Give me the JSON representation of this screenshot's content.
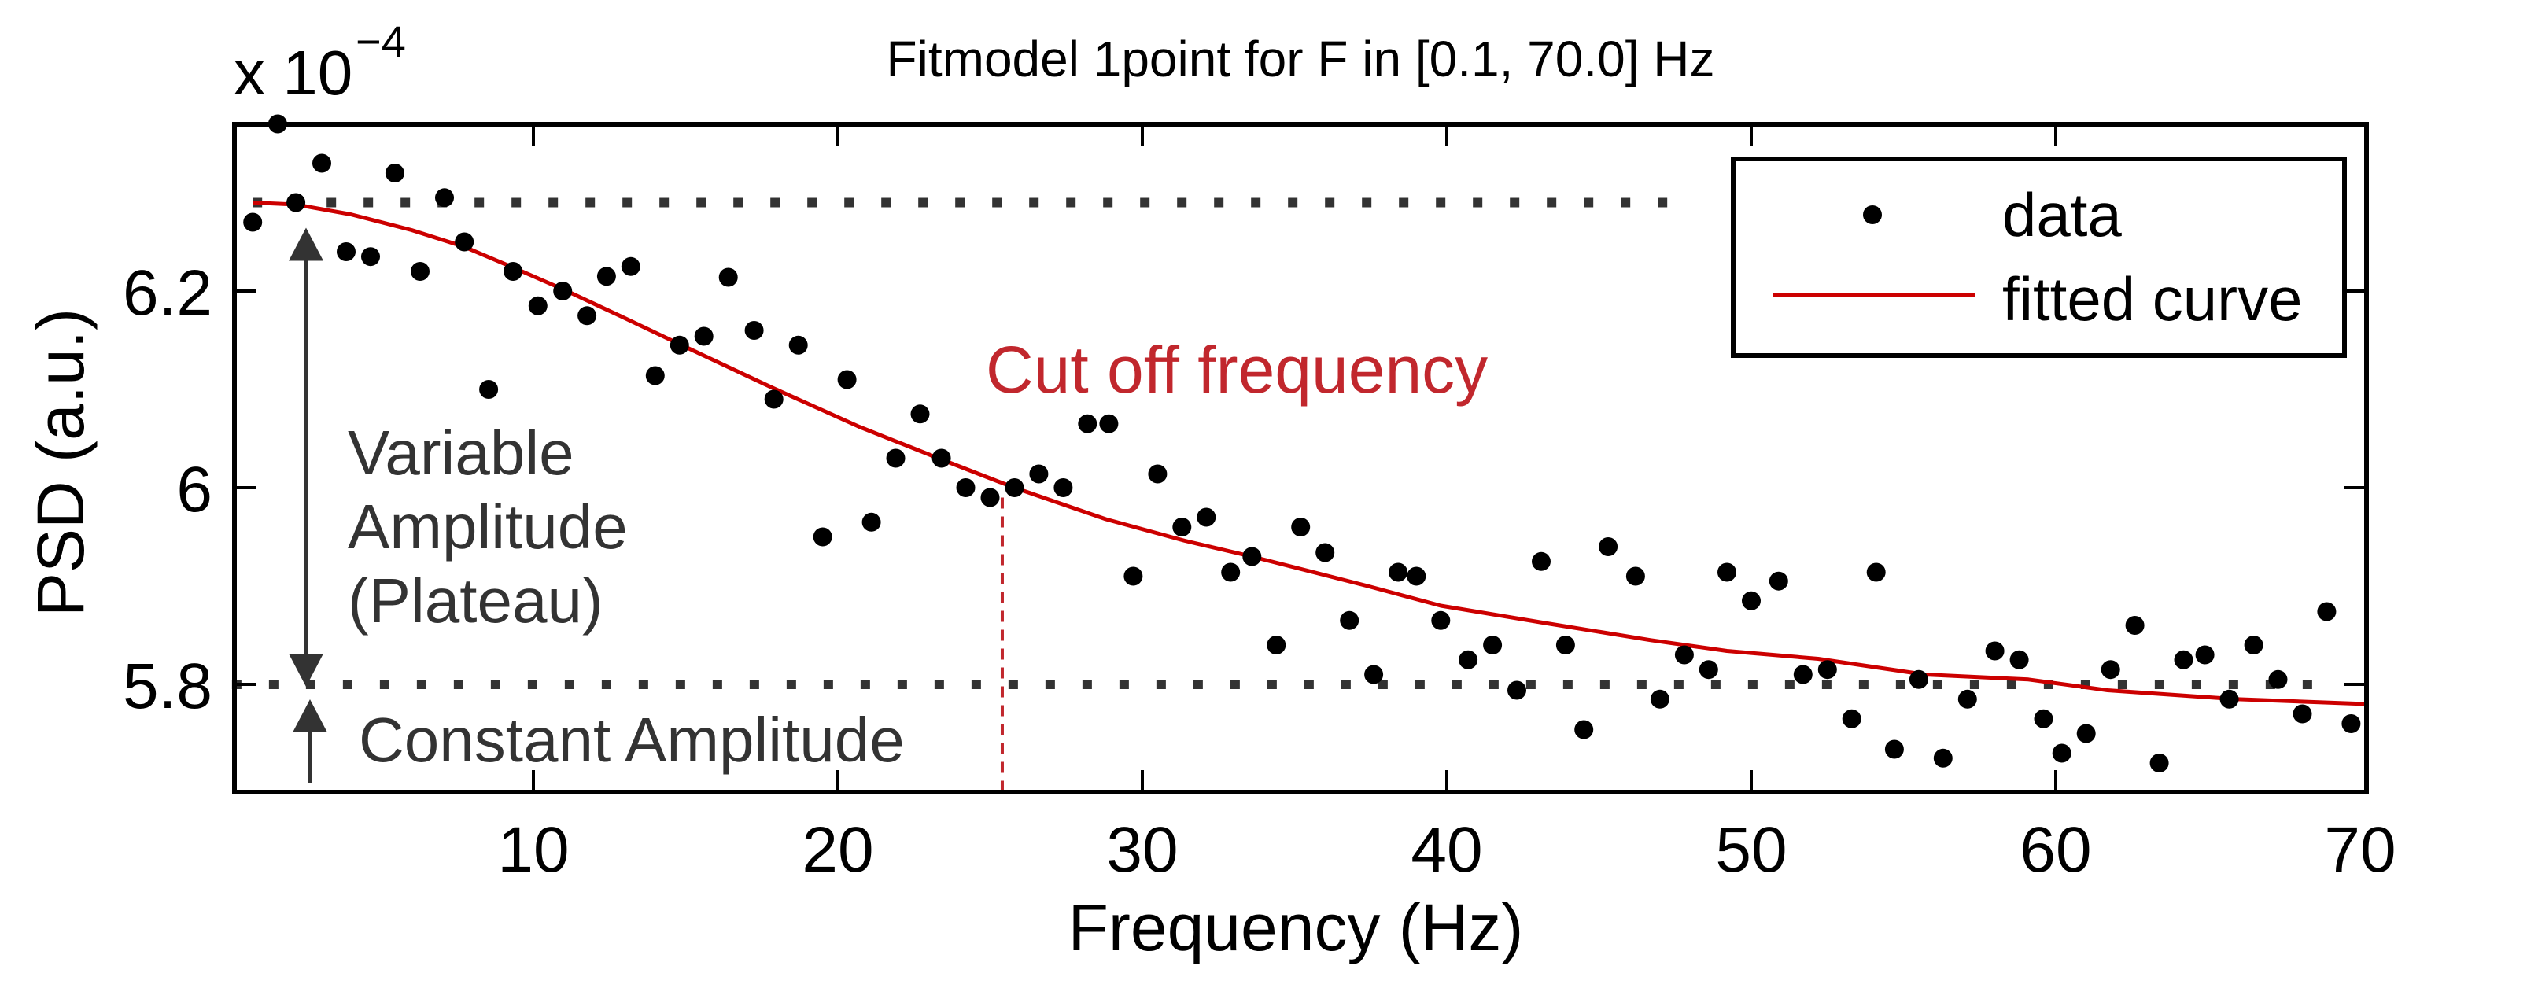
{
  "chart_data": {
    "type": "scatter",
    "title": "Fitmodel 1point for F in [0.1, 70.0] Hz",
    "xlabel": "Frequency (Hz)",
    "ylabel": "PSD (a.u.)",
    "y_multiplier_label": {
      "base": "x 10",
      "exponent": "−4"
    },
    "xlim": [
      0.1,
      70.0
    ],
    "ylim": [
      5.684,
      6.372
    ],
    "x_ticks": [
      10,
      20,
      30,
      40,
      50,
      60,
      70
    ],
    "x_tick_labels": [
      "10",
      "20",
      "30",
      "40",
      "50",
      "60",
      "70"
    ],
    "y_ticks": [
      5.8,
      6.0,
      6.2
    ],
    "y_tick_labels": [
      "5.8",
      "6",
      "6.2"
    ],
    "grid": false,
    "legend": {
      "position": "top-right",
      "entries": [
        {
          "label": "data",
          "marker": "dot",
          "color": "#000000"
        },
        {
          "label": "fitted curve",
          "marker": "line",
          "color": "#CC0000"
        }
      ]
    },
    "series": [
      {
        "name": "data",
        "kind": "scatter",
        "color": "#000000",
        "x": [
          0.78,
          1.6,
          2.2,
          3.05,
          3.85,
          4.65,
          5.45,
          6.28,
          7.08,
          7.73,
          8.53,
          9.33,
          10.15,
          10.96,
          11.76,
          12.4,
          13.2,
          14.0,
          14.8,
          15.6,
          16.4,
          17.25,
          17.9,
          18.7,
          19.5,
          20.3,
          21.1,
          21.9,
          22.7,
          23.4,
          24.2,
          25.0,
          25.8,
          26.6,
          27.4,
          28.2,
          28.9,
          29.7,
          30.5,
          31.3,
          32.1,
          32.9,
          33.6,
          34.4,
          35.2,
          36.0,
          36.8,
          37.6,
          38.4,
          39.0,
          39.8,
          40.7,
          41.5,
          42.3,
          43.1,
          43.9,
          44.5,
          45.3,
          46.2,
          47.0,
          47.8,
          48.6,
          49.2,
          50.0,
          50.9,
          51.7,
          52.5,
          53.3,
          54.1,
          54.7,
          55.5,
          56.3,
          57.1,
          58.0,
          58.8,
          59.6,
          60.2,
          61.0,
          61.8,
          62.6,
          63.4,
          64.2,
          64.9,
          65.7,
          66.5,
          67.3,
          68.1,
          68.9,
          69.7
        ],
        "y": [
          6.27,
          6.37,
          6.29,
          6.33,
          6.24,
          6.235,
          6.32,
          6.22,
          6.295,
          6.25,
          6.1,
          6.22,
          6.185,
          6.2,
          6.175,
          6.215,
          6.225,
          6.114,
          6.145,
          6.154,
          6.214,
          6.16,
          6.09,
          6.145,
          5.95,
          6.11,
          5.965,
          6.03,
          6.075,
          6.03,
          6.0,
          5.99,
          6.0,
          6.014,
          6.0,
          6.065,
          6.065,
          5.91,
          6.014,
          5.96,
          5.97,
          5.914,
          5.93,
          5.84,
          5.96,
          5.934,
          5.865,
          5.81,
          5.914,
          5.91,
          5.865,
          5.825,
          5.84,
          5.794,
          5.925,
          5.84,
          5.754,
          5.94,
          5.91,
          5.785,
          5.83,
          5.815,
          5.914,
          5.885,
          5.905,
          5.81,
          5.815,
          5.765,
          5.914,
          5.734,
          5.805,
          5.725,
          5.785,
          5.834,
          5.825,
          5.765,
          5.73,
          5.75,
          5.815,
          5.86,
          5.72,
          5.825,
          5.83,
          5.785,
          5.84,
          5.805,
          5.77,
          5.874,
          5.76
        ]
      },
      {
        "name": "fitted curve",
        "kind": "line",
        "color": "#CC0000",
        "x": [
          0.78,
          2.2,
          4.0,
          6.0,
          7.73,
          9.33,
          10.96,
          12.9,
          14.8,
          17.9,
          20.7,
          23.3,
          24.96,
          25.8,
          28.8,
          31.4,
          33.6,
          37.4,
          39.8,
          43.3,
          46.7,
          49.2,
          52.2,
          55.7,
          59.1,
          61.7,
          65.9,
          70.2
        ],
        "y": [
          6.29,
          6.288,
          6.278,
          6.262,
          6.245,
          6.224,
          6.202,
          6.174,
          6.146,
          6.101,
          6.062,
          6.03,
          6.01,
          6.0,
          5.968,
          5.946,
          5.93,
          5.9,
          5.88,
          5.862,
          5.845,
          5.834,
          5.826,
          5.81,
          5.805,
          5.794,
          5.785,
          5.78
        ]
      }
    ],
    "reference_lines": [
      {
        "name": "plateau-level",
        "orientation": "horizontal",
        "y": 6.29,
        "x_range": [
          0.78,
          47.3
        ],
        "style": "dotted",
        "color": "#333333"
      },
      {
        "name": "constant-level",
        "orientation": "horizontal",
        "y": 5.8,
        "x_range": [
          0.1,
          68.9
        ],
        "style": "dotted",
        "color": "#333333"
      },
      {
        "name": "cutoff-frequency",
        "orientation": "vertical",
        "x": 25.4,
        "y_range": [
          5.684,
          5.99
        ],
        "style": "dashed",
        "color": "#C1272D"
      }
    ],
    "annotations": [
      {
        "name": "cutoff-label",
        "text": "Cut off frequency",
        "x": 24.8,
        "y": 6.0805,
        "color": "#C1272D"
      },
      {
        "name": "variable-amplitude-label",
        "lines": [
          "Variable",
          "Amplitude",
          "(Plateau)"
        ],
        "x": 3.9,
        "y": 6.0,
        "color": "#333333"
      },
      {
        "name": "constant-amplitude-label",
        "text": "Constant Amplitude",
        "x": 4.3,
        "y": 5.72,
        "color": "#333333"
      },
      {
        "name": "plateau-double-arrow",
        "kind": "double-arrow",
        "x": 2.5,
        "y_from": 6.29,
        "y_to": 5.8,
        "color": "#333333"
      },
      {
        "name": "constant-up-arrow",
        "kind": "arrow",
        "x": 2.65,
        "y_from": 5.695,
        "y_to": 5.8,
        "color": "#333333"
      }
    ]
  }
}
